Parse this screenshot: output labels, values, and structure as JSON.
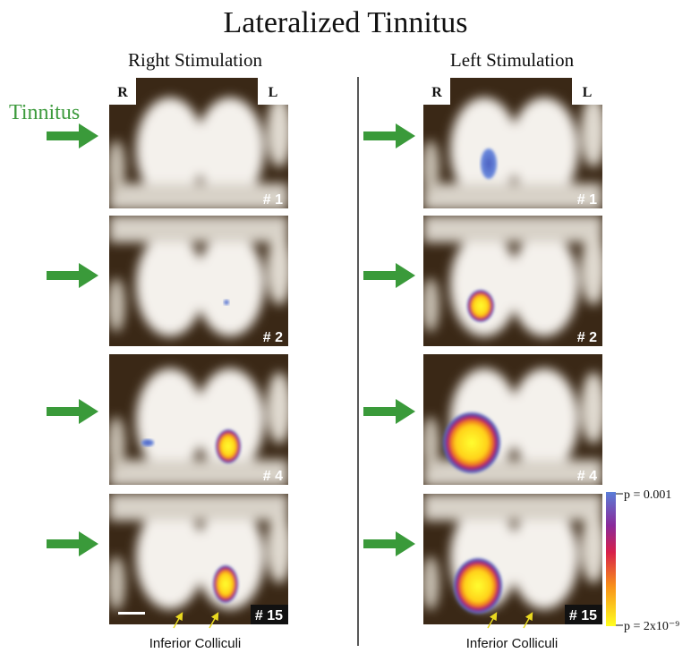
{
  "title": "Lateralized Tinnitus",
  "side_label": "Tinnitus",
  "orientation": {
    "right": "R",
    "left": "L"
  },
  "columns": [
    {
      "heading": "Right Stimulation",
      "panels": [
        "# 1",
        "# 2",
        "# 4",
        "# 15"
      ],
      "caption": "Inferior Colliculi"
    },
    {
      "heading": "Left Stimulation",
      "panels": [
        "# 1",
        "# 2",
        "# 4",
        "# 15"
      ],
      "caption": "Inferior Colliculi"
    }
  ],
  "colorbar": {
    "top_label": "p = 0.001",
    "bottom_label": "p = 2x10⁻⁹"
  }
}
